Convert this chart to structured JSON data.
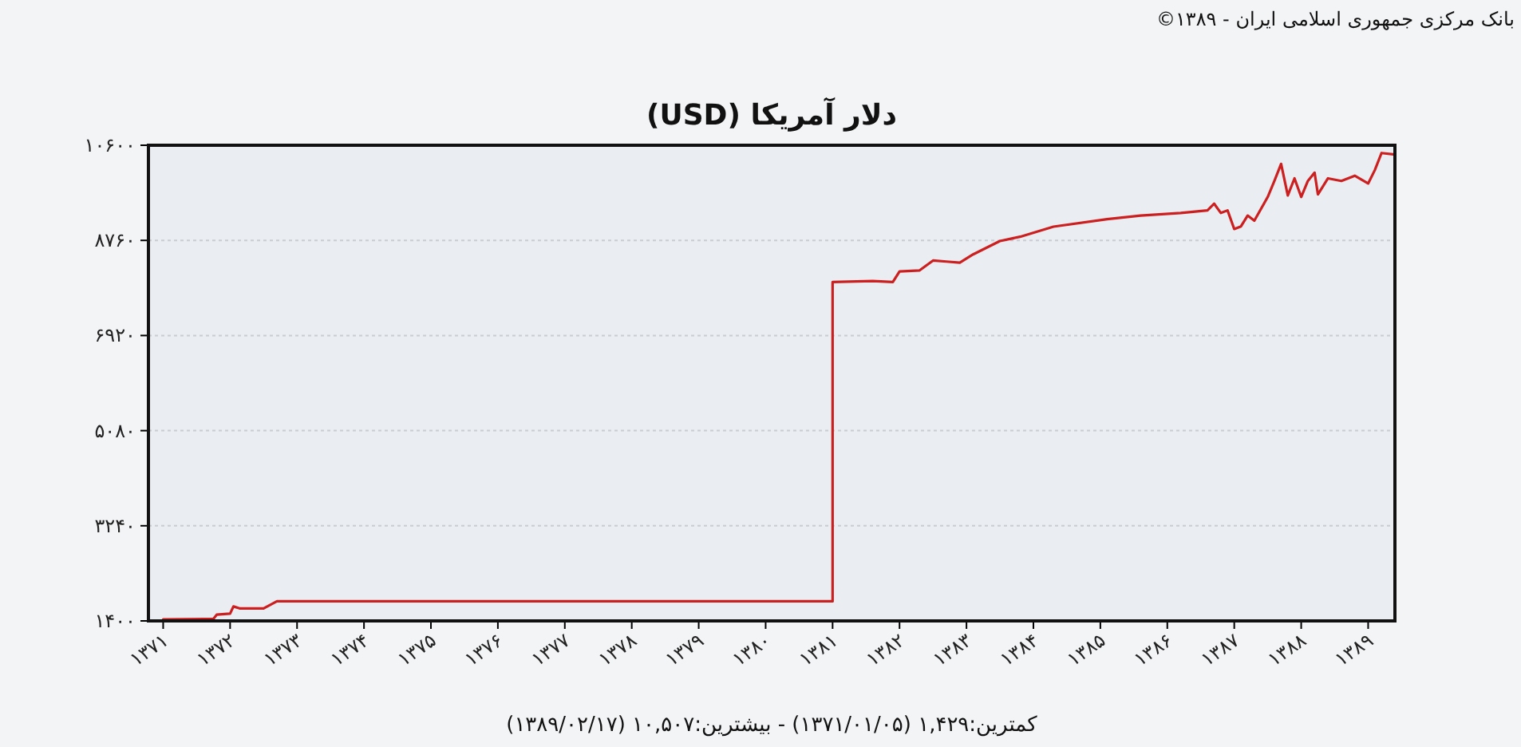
{
  "chart_data": {
    "type": "line",
    "title": "دلار آمریکا (USD)",
    "annotations": [
      "بانک مرکزی جمهوری اسلامی ایران - ۱۳۸۹©",
      "کمترین:۱,۴۲۹ (۱۳۷۱/۰۱/۰۵) - بیشترین:۱۰,۵۰۷ (۱۳۸۹/۰۲/۱۷)"
    ],
    "x": [
      1371.0,
      1371.75,
      1371.8,
      1372.0,
      1372.05,
      1372.15,
      1372.5,
      1372.7,
      1381.0,
      1381.0,
      1381.6,
      1381.9,
      1382.0,
      1382.3,
      1382.5,
      1382.7,
      1382.9,
      1383.1,
      1383.5,
      1383.8,
      1384.3,
      1385.1,
      1385.6,
      1386.2,
      1386.6,
      1386.7,
      1386.8,
      1386.9,
      1387.0,
      1387.1,
      1387.2,
      1387.3,
      1387.5,
      1387.6,
      1387.7,
      1387.8,
      1387.9,
      1388.0,
      1388.1,
      1388.2,
      1388.25,
      1388.4,
      1388.6,
      1388.8,
      1389.0,
      1389.1,
      1389.2,
      1389.4
    ],
    "series": [
      {
        "color": "#cc2020",
        "values": [
          1430,
          1440,
          1520,
          1540,
          1680,
          1640,
          1640,
          1780,
          1780,
          7954,
          7975,
          7954,
          8160,
          8180,
          8370,
          8350,
          8330,
          8490,
          8747,
          8830,
          9025,
          9170,
          9240,
          9290,
          9340,
          9470,
          9290,
          9340,
          8980,
          9030,
          9240,
          9140,
          9600,
          9910,
          10240,
          9630,
          9960,
          9600,
          9910,
          10070,
          9650,
          9960,
          9910,
          10010,
          9860,
          10120,
          10450,
          10420
        ]
      }
    ],
    "xlim": [
      1370.78,
      1389.4
    ],
    "ylim": [
      1400,
      10600
    ],
    "xticks": [
      {
        "value": 1371,
        "label": "۱۳۷۱"
      },
      {
        "value": 1372,
        "label": "۱۳۷۲"
      },
      {
        "value": 1373,
        "label": "۱۳۷۳"
      },
      {
        "value": 1374,
        "label": "۱۳۷۴"
      },
      {
        "value": 1375,
        "label": "۱۳۷۵"
      },
      {
        "value": 1376,
        "label": "۱۳۷۶"
      },
      {
        "value": 1377,
        "label": "۱۳۷۷"
      },
      {
        "value": 1378,
        "label": "۱۳۷۸"
      },
      {
        "value": 1379,
        "label": "۱۳۷۹"
      },
      {
        "value": 1380,
        "label": "۱۳۸۰"
      },
      {
        "value": 1381,
        "label": "۱۳۸۱"
      },
      {
        "value": 1382,
        "label": "۱۳۸۲"
      },
      {
        "value": 1383,
        "label": "۱۳۸۳"
      },
      {
        "value": 1384,
        "label": "۱۳۸۴"
      },
      {
        "value": 1385,
        "label": "۱۳۸۵"
      },
      {
        "value": 1386,
        "label": "۱۳۸۶"
      },
      {
        "value": 1387,
        "label": "۱۳۸۷"
      },
      {
        "value": 1388,
        "label": "۱۳۸۸"
      },
      {
        "value": 1389,
        "label": "۱۳۸۹"
      }
    ],
    "yticks": [
      {
        "value": 1400,
        "label": "۱۴۰۰"
      },
      {
        "value": 3240,
        "label": "۳۲۴۰"
      },
      {
        "value": 5080,
        "label": "۵۰۸۰"
      },
      {
        "value": 6920,
        "label": "۶۹۲۰"
      },
      {
        "value": 8760,
        "label": "۸۷۶۰"
      },
      {
        "value": 10600,
        "label": "۱۰۶۰۰"
      }
    ],
    "grid": "y"
  }
}
